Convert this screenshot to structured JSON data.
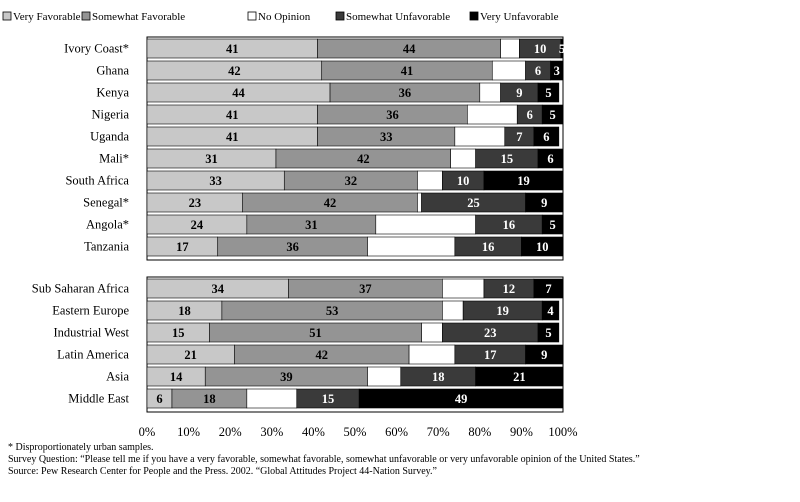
{
  "chart_data": {
    "type": "bar",
    "orientation": "horizontal",
    "stacked": true,
    "legend_position": "top",
    "series": [
      {
        "name": "Very Favorable",
        "color": "#c8c8c8"
      },
      {
        "name": "Somewhat Favorable",
        "color": "#949494"
      },
      {
        "name": "No Opinion",
        "color": "#ffffff"
      },
      {
        "name": "Somewhat Unfavorable",
        "color": "#3a3a3a"
      },
      {
        "name": "Very Unfavorable",
        "color": "#000000"
      }
    ],
    "groups": [
      {
        "rows": [
          {
            "label": "Ivory Coast*",
            "values": [
              41,
              44,
              4.5,
              10,
              5
            ]
          },
          {
            "label": "Ghana",
            "values": [
              42,
              41,
              8,
              6,
              3
            ]
          },
          {
            "label": "Kenya",
            "values": [
              44,
              36,
              5,
              9,
              5
            ]
          },
          {
            "label": "Nigeria",
            "values": [
              41,
              36,
              12,
              6,
              5
            ]
          },
          {
            "label": "Uganda",
            "values": [
              41,
              33,
              12,
              7,
              6
            ]
          },
          {
            "label": "Mali*",
            "values": [
              31,
              42,
              6,
              15,
              6
            ]
          },
          {
            "label": "South Africa",
            "values": [
              33,
              32,
              6,
              10,
              19
            ]
          },
          {
            "label": "Senegal*",
            "values": [
              23,
              42,
              1,
              25,
              9
            ]
          },
          {
            "label": "Angola*",
            "values": [
              24,
              31,
              24,
              16,
              5
            ]
          },
          {
            "label": "Tanzania",
            "values": [
              17,
              36,
              21,
              16,
              10
            ]
          }
        ]
      },
      {
        "rows": [
          {
            "label": "Sub Saharan Africa",
            "values": [
              34,
              37,
              10,
              12,
              7
            ]
          },
          {
            "label": "Eastern Europe",
            "values": [
              18,
              53,
              5,
              19,
              4
            ]
          },
          {
            "label": "Industrial West",
            "values": [
              15,
              51,
              5,
              23,
              5
            ]
          },
          {
            "label": "Latin America",
            "values": [
              21,
              42,
              11,
              17,
              9
            ]
          },
          {
            "label": "Asia",
            "values": [
              14,
              39,
              8,
              18,
              21
            ]
          },
          {
            "label": "Middle East",
            "values": [
              6,
              18,
              12,
              15,
              49
            ]
          }
        ]
      }
    ],
    "data_labels": [
      [
        [
          "41",
          "44",
          "",
          "10",
          "5"
        ],
        [
          "42",
          "41",
          "",
          "6",
          "3"
        ],
        [
          "44",
          "36",
          "",
          "9",
          "5"
        ],
        [
          "41",
          "36",
          "",
          "6",
          "5"
        ],
        [
          "41",
          "33",
          "",
          "7",
          "6"
        ],
        [
          "31",
          "42",
          "",
          "15",
          "6"
        ],
        [
          "33",
          "32",
          "",
          "10",
          "19"
        ],
        [
          "23",
          "42",
          "",
          "25",
          "9"
        ],
        [
          "24",
          "31",
          "",
          "16",
          "5"
        ],
        [
          "17",
          "36",
          "",
          "16",
          "10"
        ]
      ],
      [
        [
          "34",
          "37",
          "",
          "12",
          "7"
        ],
        [
          "18",
          "53",
          "",
          "19",
          "4"
        ],
        [
          "15",
          "51",
          "",
          "23",
          "5"
        ],
        [
          "21",
          "42",
          "",
          "17",
          "9"
        ],
        [
          "14",
          "39",
          "",
          "18",
          "21"
        ],
        [
          "6",
          "18",
          "",
          "15",
          "49"
        ]
      ]
    ],
    "xlim": [
      0,
      100
    ],
    "xticks": [
      "0%",
      "10%",
      "20%",
      "30%",
      "40%",
      "50%",
      "60%",
      "70%",
      "80%",
      "90%",
      "100%"
    ],
    "grid": false
  },
  "notes": {
    "footnote": "* Disproportionately urban samples.",
    "question": "Survey Question: “Please tell me if you have a very favorable, somewhat favorable, somewhat unfavorable or very unfavorable opinion of the United States.”",
    "source": "Source: Pew Research Center for People and the Press. 2002. “Global Attitudes Project 44-Nation Survey.”"
  }
}
